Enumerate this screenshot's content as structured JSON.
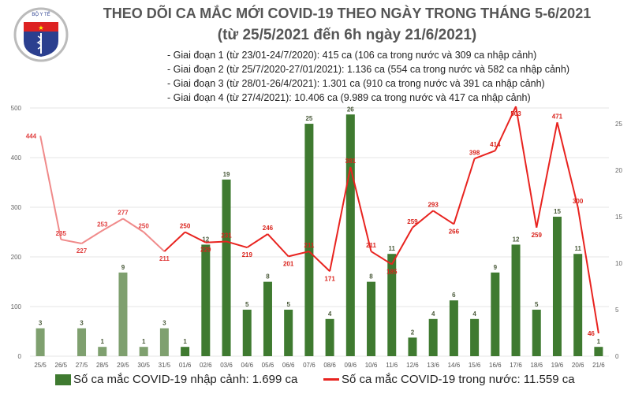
{
  "header": {
    "logo_text_top": "BỘ Y TẾ",
    "logo_text_bottom": "MINISTRY OF HEALTH",
    "title_line1": "THEO DÕI CA MẮC MỚI COVID-19 THEO NGÀY TRONG THÁNG 5-6/2021",
    "title_line2": "(từ 25/5/2021 đến 6h ngày 21/6/2021)",
    "bullets": [
      "- Giai đoạn 1 (từ 23/01-24/7/2020): 415 ca (106 ca trong nước và 309 ca nhập cảnh)",
      "- Giai đoạn 2 (từ 25/7/2020-27/01/2021): 1.136 ca (554 ca trong nước và 582 ca nhập cảnh)",
      "- Giai đoạn 3 (từ 28/01-26/4/2021): 1.301 ca (910 ca trong nước và 391 ca nhập cảnh)",
      "- Giai đoạn 4 (từ 27/4/2021): 10.406 ca (9.989 ca trong nước và 417 ca nhập cảnh)"
    ]
  },
  "chart_data": {
    "type": "bar+line",
    "categories": [
      "25/5",
      "26/5",
      "27/5",
      "28/5",
      "29/5",
      "30/5",
      "31/5",
      "01/6",
      "02/6",
      "03/6",
      "04/6",
      "05/6",
      "06/6",
      "07/6",
      "08/6",
      "09/6",
      "10/6",
      "11/6",
      "12/6",
      "13/6",
      "14/6",
      "15/6",
      "16/6",
      "17/6",
      "18/6",
      "19/6",
      "20/6",
      "21/6"
    ],
    "series": [
      {
        "name": "Số ca mắc COVID-19 nhập cảnh: 1.699 ca",
        "type": "bar",
        "axis": "right",
        "values": [
          3,
          null,
          3,
          1,
          9,
          1,
          3,
          1,
          12,
          19,
          5,
          8,
          5,
          25,
          4,
          26,
          8,
          11,
          2,
          4,
          6,
          4,
          9,
          12,
          5,
          15,
          11,
          1
        ]
      },
      {
        "name": "Số ca mắc COVID-19 trong nước: 11.559 ca",
        "type": "line",
        "axis": "left",
        "values": [
          444,
          235,
          227,
          253,
          277,
          250,
          211,
          250,
          229,
          231,
          219,
          246,
          201,
          211,
          171,
          381,
          211,
          185,
          259,
          293,
          266,
          398,
          414,
          503,
          259,
          471,
          300,
          46
        ]
      }
    ],
    "left_axis": {
      "ylim": [
        0,
        500
      ],
      "ticks": [
        "0",
        "100",
        "200",
        "300",
        "400",
        "500"
      ]
    },
    "right_axis": {
      "ylim": [
        0,
        26.7
      ],
      "ticks": [
        "0",
        "5",
        "10",
        "15",
        "20",
        "25"
      ]
    },
    "grid": true,
    "legend": "bottom",
    "colors": {
      "bar": "#3f7a30",
      "bar_light": "#7fa06f",
      "line": "#e8231f",
      "line_light": "#f08a8a",
      "label_bar": "#4a5a3a",
      "label_line": "#d9231c"
    }
  }
}
